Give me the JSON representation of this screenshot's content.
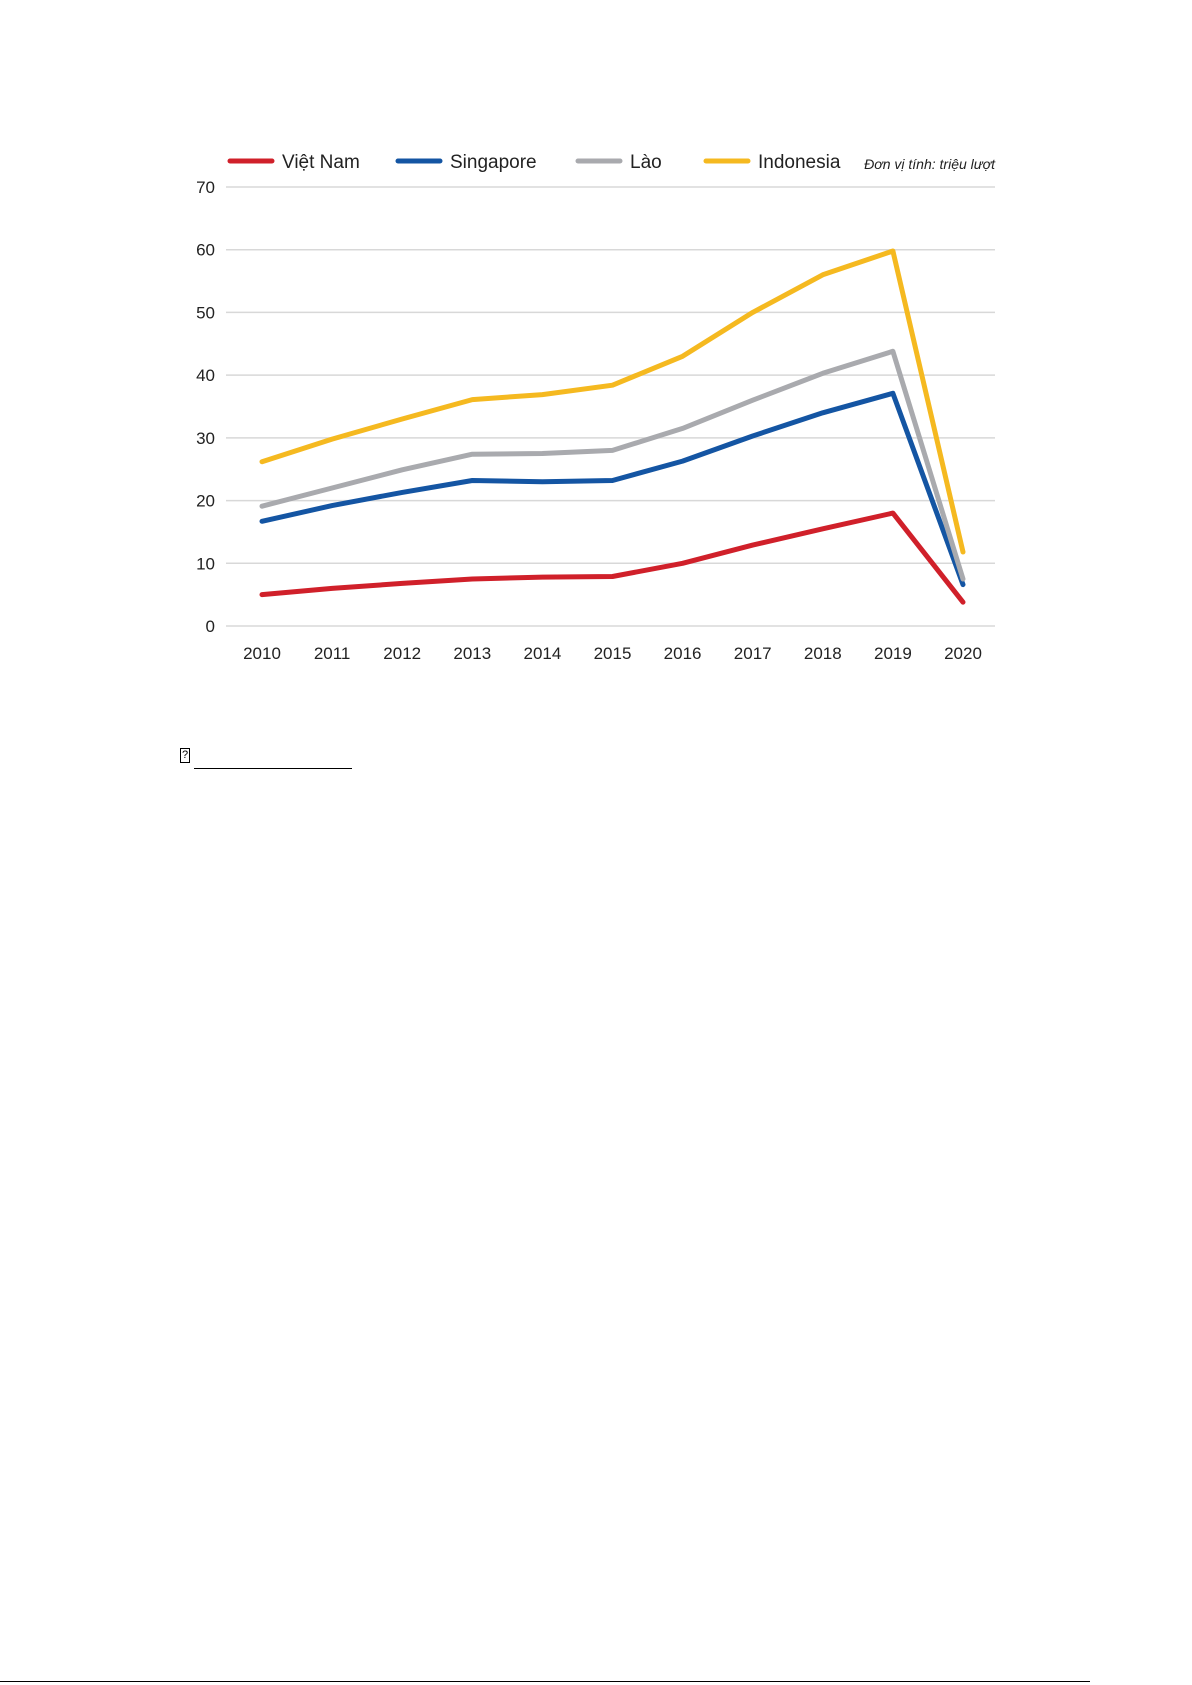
{
  "chart_data": {
    "type": "line",
    "unit": "Đơn vị tính: triệu lượt",
    "x": [
      "2010",
      "2011",
      "2012",
      "2013",
      "2014",
      "2015",
      "2016",
      "2017",
      "2018",
      "2019",
      "2020"
    ],
    "ylim": [
      0,
      70
    ],
    "yticks": [
      0,
      10,
      20,
      30,
      40,
      50,
      60,
      70
    ],
    "grid": true,
    "legend_position": "top",
    "series": [
      {
        "name": "Việt Nam",
        "color": "#d0202a",
        "values": [
          5.0,
          6.0,
          6.8,
          7.5,
          7.8,
          7.9,
          10.0,
          12.9,
          15.5,
          18.0,
          3.8
        ]
      },
      {
        "name": "Singapore",
        "color": "#1455a3",
        "values": [
          16.7,
          19.2,
          21.3,
          23.2,
          23.0,
          23.2,
          26.3,
          30.3,
          34.0,
          37.1,
          6.6
        ]
      },
      {
        "name": "Lào",
        "color": "#a9aaae",
        "values": [
          19.1,
          22.0,
          24.9,
          27.4,
          27.5,
          28.0,
          31.5,
          36.0,
          40.3,
          43.8,
          7.5
        ]
      },
      {
        "name": "Indonesia",
        "color": "#f5b920",
        "values": [
          26.2,
          29.8,
          33.0,
          36.1,
          36.9,
          38.4,
          43.0,
          50.0,
          56.0,
          59.8,
          11.8
        ]
      }
    ]
  },
  "footnote": {
    "icon": "footnote-box-icon",
    "mark": "?"
  }
}
